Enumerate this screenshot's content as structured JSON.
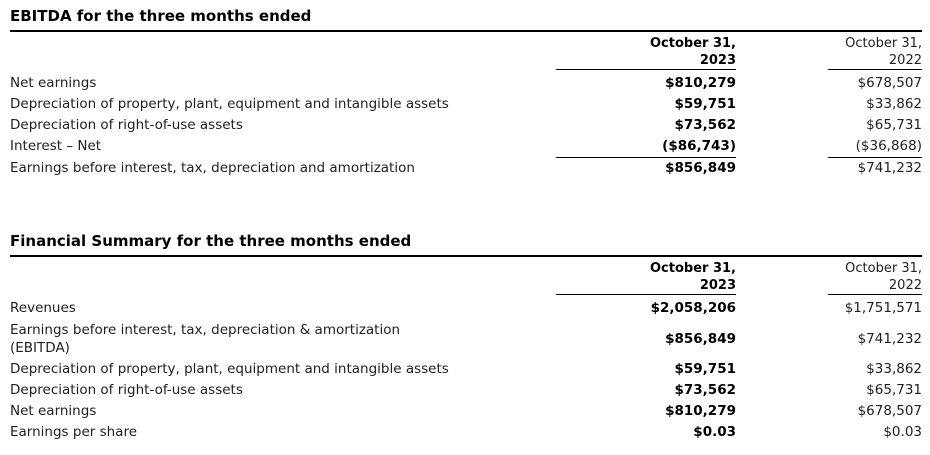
{
  "page": {
    "background": "#ffffff",
    "text_color": "#1f1f1f",
    "rule_color": "#000000"
  },
  "ebitda_section": {
    "title": "EBITDA for the three months ended",
    "columns": {
      "col_2023_line1": "October 31,",
      "col_2023_line2": "2023",
      "col_2022_line1": "October 31,",
      "col_2022_line2": "2022"
    },
    "rows": [
      {
        "label": "Net earnings",
        "value_2023": "$810,279",
        "value_2022": "$678,507"
      },
      {
        "label": "Depreciation of property, plant, equipment and intangible assets",
        "value_2023": "$59,751",
        "value_2022": "$33,862"
      },
      {
        "label": "Depreciation of right-of-use assets",
        "value_2023": "$73,562",
        "value_2022": "$65,731"
      },
      {
        "label": "Interest – Net",
        "value_2023": "($86,743)",
        "value_2022": "($36,868)"
      },
      {
        "label": "Earnings before interest, tax, depreciation and amortization",
        "value_2023": "$856,849",
        "value_2022": "$741,232"
      }
    ]
  },
  "financial_summary_section": {
    "title": "Financial Summary for the three months ended",
    "columns": {
      "col_2023_line1": "October 31,",
      "col_2023_line2": "2023",
      "col_2022_line1": "October 31,",
      "col_2022_line2": "2022"
    },
    "rows": [
      {
        "label": "Revenues",
        "value_2023": "$2,058,206",
        "value_2022": "$1,751,571"
      },
      {
        "label": "Earnings before interest, tax, depreciation & amortization",
        "label_line2": "(EBITDA)",
        "value_2023": "$856,849",
        "value_2022": "$741,232"
      },
      {
        "label": "Depreciation of property, plant, equipment and intangible assets",
        "value_2023": "$59,751",
        "value_2022": "$33,862"
      },
      {
        "label": "Depreciation of right-of-use assets",
        "value_2023": "$73,562",
        "value_2022": "$65,731"
      },
      {
        "label": "Net earnings",
        "value_2023": "$810,279",
        "value_2022": "$678,507"
      },
      {
        "label": "Earnings per share",
        "value_2023": "$0.03",
        "value_2022": "$0.03"
      }
    ]
  }
}
